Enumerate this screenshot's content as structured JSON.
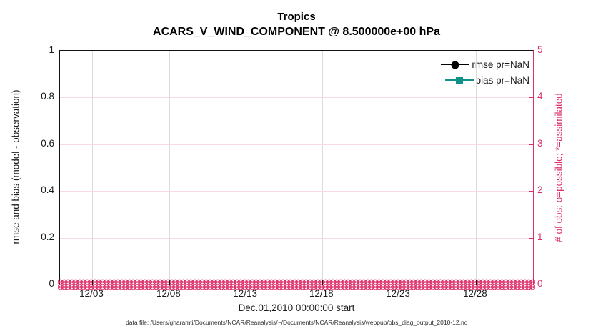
{
  "titles": {
    "line1": "Tropics",
    "line2": "ACARS_V_WIND_COMPONENT @ 8.500000e+00 hPa"
  },
  "axes": {
    "left": {
      "label": "rmse and bias (model - observation)",
      "color": "#1a1a1a",
      "ticks": [
        {
          "label": "0",
          "pct": 0
        },
        {
          "label": "0.2",
          "pct": 20
        },
        {
          "label": "0.4",
          "pct": 40
        },
        {
          "label": "0.6",
          "pct": 60
        },
        {
          "label": "0.8",
          "pct": 80
        },
        {
          "label": "1",
          "pct": 100
        }
      ]
    },
    "right": {
      "label": "# of obs: o=possible; *=assimilated",
      "color": "#dd2e68",
      "ticks": [
        {
          "label": "0",
          "pct": 0
        },
        {
          "label": "1",
          "pct": 20
        },
        {
          "label": "2",
          "pct": 40
        },
        {
          "label": "3",
          "pct": 60
        },
        {
          "label": "4",
          "pct": 80
        },
        {
          "label": "5",
          "pct": 100
        }
      ]
    },
    "x": {
      "label": "Dec.01,2010 00:00:00 start",
      "ticks": [
        {
          "label": "12/03",
          "pct": 6.8
        },
        {
          "label": "12/08",
          "pct": 23.1
        },
        {
          "label": "12/13",
          "pct": 39.3
        },
        {
          "label": "12/18",
          "pct": 55.4
        },
        {
          "label": "12/23",
          "pct": 71.6
        },
        {
          "label": "12/28",
          "pct": 87.9
        }
      ]
    }
  },
  "legend": [
    {
      "label": "rmse pr=NaN",
      "color": "#000000",
      "marker": "circle"
    },
    {
      "label": "bias pr=NaN",
      "color": "#11918a",
      "marker": "square"
    }
  ],
  "footer": {
    "text": "data file: /Users/gharamti/Documents/NCAR/Reanalysis/~/Documents/NCAR/Reanalysis/webpub/obs_diag_output_2010-12.nc"
  },
  "colors": {
    "accent_pink": "#dd2e68",
    "grid_pink": "#f9d9e4",
    "grid_gray": "#dbdbdb",
    "teal": "#11918a",
    "black": "#000000"
  },
  "chart_data": {
    "type": "line",
    "title": "Tropics",
    "subtitle": "ACARS_V_WIND_COMPONENT @ 8.500000e+00 hPa",
    "xlabel": "Dec.01,2010 00:00:00 start",
    "ylabel_left": "rmse and bias (model - observation)",
    "ylabel_right": "# of obs: o=possible; *=assimilated",
    "x_tick_labels": [
      "12/03",
      "12/08",
      "12/13",
      "12/18",
      "12/23",
      "12/28"
    ],
    "x_range": [
      "12/01/2010",
      "12/31/2010"
    ],
    "ylim_left": [
      0,
      1
    ],
    "yticks_left": [
      0,
      0.2,
      0.4,
      0.6,
      0.8,
      1
    ],
    "ylim_right": [
      0,
      5
    ],
    "yticks_right": [
      0,
      1,
      2,
      3,
      4,
      5
    ],
    "grid": {
      "vertical": "light-gray",
      "horizontal": "light-pink"
    },
    "legend_position": "inside-top-right",
    "n_time_bins": 124,
    "series": [
      {
        "name": "rmse pr=NaN",
        "axis": "left",
        "color": "#000000",
        "marker": "filled-circle",
        "values": "all NaN (no curve plotted)"
      },
      {
        "name": "bias pr=NaN",
        "axis": "left",
        "color": "#11918a",
        "marker": "filled-square",
        "values": "all NaN (no curve plotted)"
      },
      {
        "name": "# of obs possible (o markers)",
        "axis": "right",
        "color": "#dd2e68",
        "marker": "o",
        "values": "0 for every time bin"
      },
      {
        "name": "# of obs assimilated (* markers)",
        "axis": "right",
        "color": "#dd2e68",
        "marker": "*",
        "values": "0 for every time bin"
      }
    ]
  }
}
